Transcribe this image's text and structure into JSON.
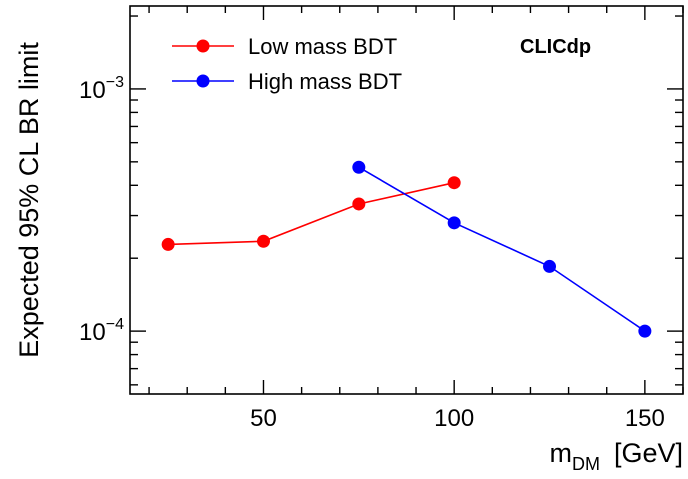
{
  "chart_data": {
    "type": "line",
    "ylabel": "Expected 95% CL BR limit",
    "xlabel": {
      "main": "m",
      "sub": "DM",
      "unit": "[GeV]"
    },
    "xlim": [
      15,
      160
    ],
    "ylim": [
      5.5e-05,
      0.0022
    ],
    "yscale": "log",
    "xticks": [
      50,
      100,
      150
    ],
    "xtick_labels": [
      "50",
      "100",
      "150"
    ],
    "yticks": [
      {
        "value": 0.001,
        "base": "10",
        "exp": "−3"
      },
      {
        "value": 0.0001,
        "base": "10",
        "exp": "−4"
      }
    ],
    "legend_position": "top-left",
    "annotation": "CLICdp",
    "series": [
      {
        "name": "Low mass BDT",
        "color": "#ff0000",
        "x": [
          25,
          50,
          75,
          100
        ],
        "y": [
          0.000228,
          0.000235,
          0.000335,
          0.00041
        ]
      },
      {
        "name": "High mass BDT",
        "color": "#0000ff",
        "x": [
          75,
          100,
          125,
          150
        ],
        "y": [
          0.000475,
          0.00028,
          0.000185,
          0.0001
        ]
      }
    ]
  }
}
